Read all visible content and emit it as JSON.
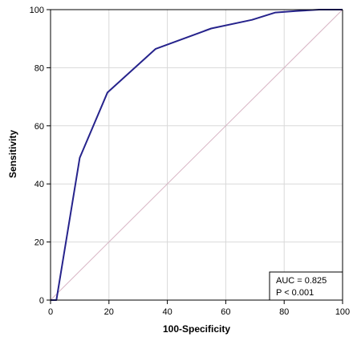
{
  "chart_data": {
    "type": "line",
    "xlabel": "100-Specificity",
    "ylabel": "Sensitivity",
    "xlim": [
      0,
      100
    ],
    "ylim": [
      0,
      100
    ],
    "xticks": [
      0,
      20,
      40,
      60,
      80,
      100
    ],
    "yticks": [
      0,
      20,
      40,
      60,
      80,
      100
    ],
    "grid": true,
    "series": [
      {
        "x": [
          0,
          2,
          10,
          19.5,
          36,
          55,
          69,
          77,
          84,
          92,
          100
        ],
        "y": [
          0,
          0,
          49,
          71.5,
          86.5,
          93.5,
          96.5,
          99,
          99.5,
          100,
          100
        ],
        "color": "#26238c"
      }
    ],
    "reference_line": {
      "x": [
        0,
        100
      ],
      "y": [
        0,
        100
      ],
      "color": "#d8b4c4"
    },
    "annotation": {
      "lines": [
        "AUC = 0.825",
        "P < 0.001"
      ],
      "placement": "bottom-right"
    }
  }
}
